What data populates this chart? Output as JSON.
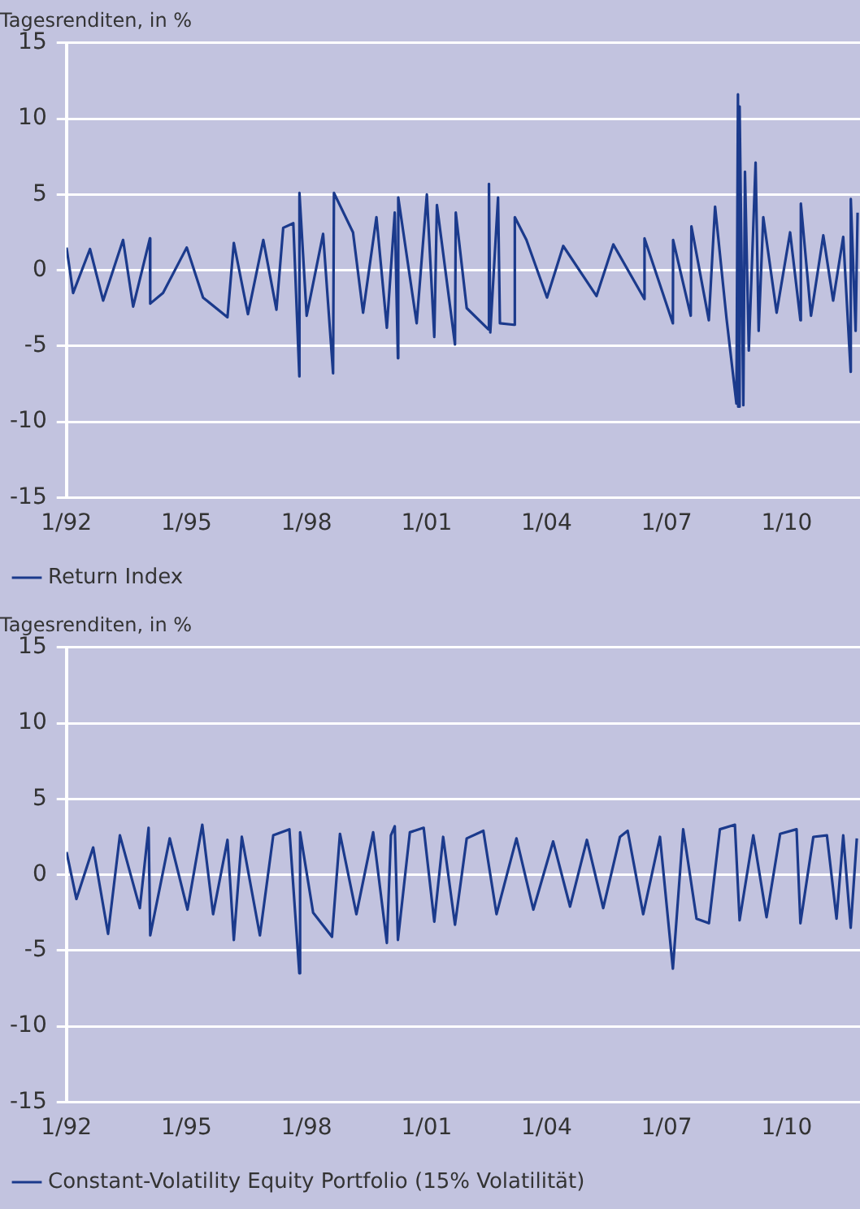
{
  "chart_data": [
    {
      "type": "line",
      "ylabel": "Tagesrenditen, in %",
      "xlim": [
        "1992-01",
        "2011-11"
      ],
      "ylim": [
        -15,
        15
      ],
      "yticks": [
        -15,
        -10,
        -5,
        0,
        5,
        10,
        15
      ],
      "xticks": [
        {
          "value": "1992-01",
          "label": "1/92"
        },
        {
          "value": "1995-01",
          "label": "1/95"
        },
        {
          "value": "1998-01",
          "label": "1/98"
        },
        {
          "value": "2001-01",
          "label": "1/01"
        },
        {
          "value": "2004-01",
          "label": "1/04"
        },
        {
          "value": "2007-01",
          "label": "1/07"
        },
        {
          "value": "2010-01",
          "label": "1/10"
        }
      ],
      "grid": "y",
      "legend": "bottom left",
      "marker": "none",
      "line_style": "solid",
      "series": [
        {
          "name": "Return Index",
          "color": "#1b3a8c",
          "x": [
            "1992-01-02",
            "1992-03-02",
            "1992-08-03",
            "1992-12-01",
            "1993-06-01",
            "1993-09-01",
            "1994-02-01",
            "1994-02-04",
            "1994-06-01",
            "1995-01-03",
            "1995-06-01",
            "1996-01-10",
            "1996-03-08",
            "1996-07-15",
            "1996-12-02",
            "1997-04-01",
            "1997-06-02",
            "1997-09-02",
            "1997-10-27",
            "1997-10-28",
            "1998-01-02",
            "1998-06-01",
            "1998-08-31",
            "1998-09-08",
            "1999-03-01",
            "1999-06-01",
            "1999-10-01",
            "2000-01-04",
            "2000-03-16",
            "2000-04-14",
            "2000-04-17",
            "2000-10-02",
            "2001-01-03",
            "2001-03-12",
            "2001-04-05",
            "2001-09-17",
            "2001-09-24",
            "2002-01-02",
            "2002-07-19",
            "2002-07-24",
            "2002-08-05",
            "2002-10-15",
            "2002-11-01",
            "2003-03-10",
            "2003-03-17",
            "2003-07-01",
            "2004-01-05",
            "2004-06-01",
            "2005-04-01",
            "2005-09-01",
            "2006-06-12",
            "2006-06-13",
            "2007-02-27",
            "2007-03-01",
            "2007-08-09",
            "2007-08-15",
            "2008-01-21",
            "2008-03-18",
            "2008-07-01",
            "2008-09-29",
            "2008-10-13",
            "2008-10-15",
            "2008-10-28",
            "2008-12-01",
            "2008-12-16",
            "2009-01-20",
            "2009-03-23",
            "2009-04-20",
            "2009-06-01",
            "2009-10-01",
            "2010-02-01",
            "2010-05-06",
            "2010-05-10",
            "2010-08-11",
            "2010-12-01",
            "2011-03-01",
            "2011-06-01",
            "2011-08-08",
            "2011-08-09",
            "2011-09-22",
            "2011-10-10"
          ],
          "values": [
            1.5,
            -1.5,
            1.4,
            -2.0,
            2.0,
            -2.4,
            2.1,
            -2.2,
            -1.5,
            1.5,
            -1.8,
            -3.1,
            1.8,
            -2.9,
            2.0,
            -2.6,
            2.8,
            3.1,
            -7.0,
            5.1,
            -3.0,
            2.4,
            -6.8,
            5.1,
            2.5,
            -2.8,
            3.5,
            -3.8,
            3.8,
            -5.8,
            4.8,
            -3.5,
            5.0,
            -4.4,
            4.3,
            -4.9,
            3.8,
            -2.5,
            -3.9,
            5.7,
            -4.1,
            4.8,
            -3.5,
            -3.6,
            3.5,
            2.0,
            -1.8,
            1.6,
            -1.7,
            1.7,
            -1.9,
            2.1,
            -3.5,
            2.0,
            -3.0,
            2.9,
            -3.3,
            4.2,
            -3.2,
            -8.8,
            11.6,
            -9.0,
            10.8,
            -8.9,
            6.5,
            -5.3,
            7.1,
            -4.0,
            3.5,
            -2.8,
            2.5,
            -3.3,
            4.4,
            -3.0,
            2.3,
            -2.0,
            2.2,
            -6.7,
            4.7,
            -4.0,
            3.8
          ]
        }
      ]
    },
    {
      "type": "line",
      "ylabel": "Tagesrenditen, in %",
      "xlim": [
        "1992-01",
        "2011-11"
      ],
      "ylim": [
        -15,
        15
      ],
      "yticks": [
        -15,
        -10,
        -5,
        0,
        5,
        10,
        15
      ],
      "xticks": [
        {
          "value": "1992-01",
          "label": "1/92"
        },
        {
          "value": "1995-01",
          "label": "1/95"
        },
        {
          "value": "1998-01",
          "label": "1/98"
        },
        {
          "value": "2001-01",
          "label": "1/01"
        },
        {
          "value": "2004-01",
          "label": "1/04"
        },
        {
          "value": "2007-01",
          "label": "1/07"
        },
        {
          "value": "2010-01",
          "label": "1/10"
        }
      ],
      "grid": "y",
      "legend": "bottom left",
      "marker": "none",
      "line_style": "solid",
      "series": [
        {
          "name": "Constant-Volatility Equity Portfolio (15% Volatilität)",
          "color": "#1b3a8c",
          "x": [
            "1992-01-02",
            "1992-04-01",
            "1992-09-01",
            "1993-01-15",
            "1993-05-03",
            "1993-11-01",
            "1994-01-20",
            "1994-02-04",
            "1994-08-01",
            "1995-01-10",
            "1995-05-25",
            "1995-09-01",
            "1996-01-10",
            "1996-03-08",
            "1996-05-20",
            "1996-11-01",
            "1997-03-03",
            "1997-07-28",
            "1997-10-27",
            "1997-11-03",
            "1998-03-02",
            "1998-08-21",
            "1998-11-02",
            "1999-04-01",
            "1999-09-01",
            "2000-01-04",
            "2000-02-10",
            "2000-03-16",
            "2000-04-14",
            "2000-08-01",
            "2000-12-05",
            "2001-03-12",
            "2001-06-01",
            "2001-09-17",
            "2002-01-02",
            "2002-06-03",
            "2002-10-01",
            "2003-04-01",
            "2003-09-02",
            "2004-03-01",
            "2004-08-02",
            "2005-01-03",
            "2005-06-01",
            "2005-11-01",
            "2006-01-10",
            "2006-06-01",
            "2006-11-01",
            "2007-02-27",
            "2007-06-01",
            "2007-10-01",
            "2008-01-22",
            "2008-05-01",
            "2008-09-15",
            "2008-10-28",
            "2009-03-02",
            "2009-07-01",
            "2009-11-02",
            "2010-04-01",
            "2010-05-06",
            "2010-09-01",
            "2011-01-03",
            "2011-04-01",
            "2011-06-01",
            "2011-08-08",
            "2011-10-03"
          ],
          "values": [
            1.5,
            -1.6,
            1.8,
            -3.9,
            2.6,
            -2.2,
            3.1,
            -4.0,
            2.4,
            -2.3,
            3.3,
            -2.6,
            2.3,
            -4.3,
            2.5,
            -4.0,
            2.6,
            3.0,
            -6.5,
            2.8,
            -2.5,
            -4.1,
            2.7,
            -2.6,
            2.8,
            -4.5,
            2.6,
            3.2,
            -4.3,
            2.8,
            3.1,
            -3.1,
            2.5,
            -3.3,
            2.4,
            2.9,
            -2.6,
            2.4,
            -2.3,
            2.2,
            -2.1,
            2.3,
            -2.2,
            2.5,
            2.9,
            -2.6,
            2.5,
            -6.2,
            3.0,
            -2.9,
            -3.2,
            3.0,
            3.3,
            -3.0,
            2.6,
            -2.8,
            2.7,
            3.0,
            -3.2,
            2.5,
            2.6,
            -2.9,
            2.6,
            -3.5,
            2.4
          ]
        }
      ]
    }
  ]
}
